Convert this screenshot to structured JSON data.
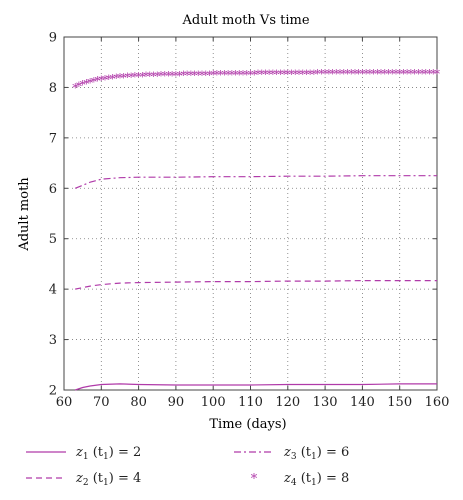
{
  "chart_data": {
    "type": "line",
    "title": "Adult moth Vs time",
    "xlabel": "Time (days)",
    "ylabel": "Adult moth",
    "xlim": [
      60,
      160
    ],
    "ylim": [
      2,
      9
    ],
    "xticks": [
      60,
      70,
      80,
      90,
      100,
      110,
      120,
      130,
      140,
      150,
      160
    ],
    "yticks": [
      2,
      3,
      4,
      5,
      6,
      7,
      8,
      9
    ],
    "grid": "dotted",
    "legend_position": "below",
    "color": "#b03aa9",
    "series": [
      {
        "key": "z1",
        "var": "z",
        "sub": "1",
        "arg": "(t",
        "argsub": "1",
        "tail": ") = 2",
        "style": "solid",
        "x": [
          63,
          65,
          67,
          70,
          75,
          80,
          90,
          100,
          110,
          120,
          130,
          140,
          150,
          160
        ],
        "y": [
          2.0,
          2.05,
          2.08,
          2.11,
          2.12,
          2.11,
          2.1,
          2.1,
          2.1,
          2.11,
          2.11,
          2.11,
          2.12,
          2.12
        ]
      },
      {
        "key": "z2",
        "var": "z",
        "sub": "2",
        "arg": "(t",
        "argsub": "1",
        "tail": ") = 4",
        "style": "dashed",
        "x": [
          63,
          65,
          67,
          70,
          75,
          80,
          90,
          100,
          110,
          120,
          130,
          140,
          150,
          160
        ],
        "y": [
          4.0,
          4.03,
          4.06,
          4.09,
          4.12,
          4.13,
          4.14,
          4.15,
          4.15,
          4.16,
          4.16,
          4.17,
          4.17,
          4.17
        ]
      },
      {
        "key": "z3",
        "var": "z",
        "sub": "3",
        "arg": "(t",
        "argsub": "1",
        "tail": ") = 6",
        "style": "dashdot",
        "x": [
          63,
          65,
          67,
          70,
          75,
          80,
          90,
          100,
          110,
          120,
          130,
          140,
          150,
          160
        ],
        "y": [
          6.0,
          6.06,
          6.12,
          6.18,
          6.21,
          6.22,
          6.22,
          6.23,
          6.23,
          6.24,
          6.24,
          6.25,
          6.25,
          6.25
        ]
      },
      {
        "key": "z4",
        "var": "z",
        "sub": "4",
        "arg": "(t",
        "argsub": "1",
        "tail": ") = 8",
        "style": "star",
        "x": [
          63,
          64,
          65,
          66,
          67,
          68,
          69,
          70,
          71,
          72,
          73,
          74,
          75,
          76,
          77,
          78,
          79,
          80,
          81,
          82,
          83,
          84,
          85,
          86,
          87,
          88,
          89,
          90,
          91,
          92,
          93,
          94,
          95,
          96,
          97,
          98,
          99,
          100,
          101,
          102,
          103,
          104,
          105,
          106,
          107,
          108,
          109,
          110,
          111,
          112,
          113,
          114,
          115,
          116,
          117,
          118,
          119,
          120,
          121,
          122,
          123,
          124,
          125,
          126,
          127,
          128,
          129,
          130,
          131,
          132,
          133,
          134,
          135,
          136,
          137,
          138,
          139,
          140,
          141,
          142,
          143,
          144,
          145,
          146,
          147,
          148,
          149,
          150,
          151,
          152,
          153,
          154,
          155,
          156,
          157,
          158,
          159,
          160
        ],
        "y": [
          8.0,
          8.03,
          8.06,
          8.08,
          8.1,
          8.12,
          8.14,
          8.15,
          8.16,
          8.17,
          8.18,
          8.19,
          8.2,
          8.2,
          8.21,
          8.21,
          8.22,
          8.22,
          8.22,
          8.23,
          8.23,
          8.23,
          8.23,
          8.24,
          8.24,
          8.24,
          8.24,
          8.24,
          8.24,
          8.25,
          8.25,
          8.25,
          8.25,
          8.25,
          8.25,
          8.25,
          8.25,
          8.26,
          8.26,
          8.26,
          8.26,
          8.26,
          8.26,
          8.26,
          8.26,
          8.26,
          8.26,
          8.26,
          8.26,
          8.27,
          8.27,
          8.27,
          8.27,
          8.27,
          8.27,
          8.27,
          8.27,
          8.27,
          8.27,
          8.27,
          8.27,
          8.27,
          8.27,
          8.27,
          8.27,
          8.28,
          8.28,
          8.28,
          8.28,
          8.28,
          8.28,
          8.28,
          8.28,
          8.28,
          8.28,
          8.28,
          8.28,
          8.28,
          8.28,
          8.28,
          8.28,
          8.28,
          8.28,
          8.28,
          8.28,
          8.28,
          8.28,
          8.28,
          8.28,
          8.28,
          8.28,
          8.28,
          8.28,
          8.28,
          8.28,
          8.28,
          8.28,
          8.28
        ]
      }
    ]
  }
}
